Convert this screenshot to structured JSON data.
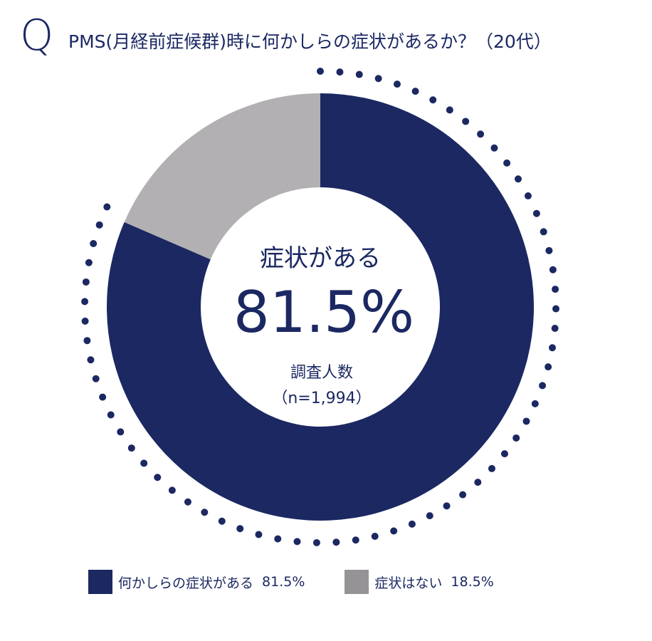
{
  "header": {
    "q_mark": "Q",
    "question": "PMS(月経前症候群)時に何かしらの症状があるか？（20代）"
  },
  "center": {
    "label": "症状がある",
    "value": "81.5%",
    "sample_label": "調査人数",
    "sample_size": "（n=1,994）"
  },
  "colors": {
    "primary": "#1b2862",
    "secondary": "#b2b0b2",
    "legend_secondary": "#959395",
    "dots": "#1b2862"
  },
  "chart_data": {
    "type": "pie",
    "donut": true,
    "title": "",
    "series": [
      {
        "name": "何かしらの症状がある",
        "value": 81.5,
        "value_label": "81.5%"
      },
      {
        "name": "症状はない",
        "value": 18.5,
        "value_label": "18.5%"
      }
    ],
    "legend": "bottom"
  }
}
